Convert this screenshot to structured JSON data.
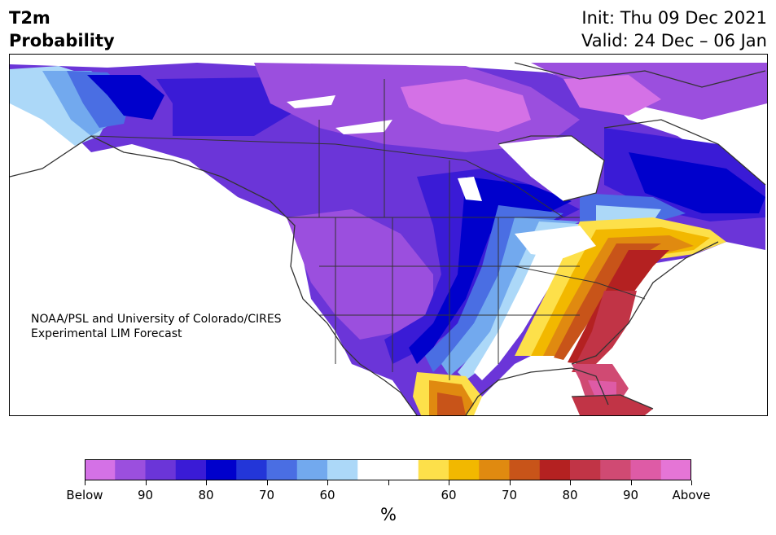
{
  "header": {
    "variable": "T2m",
    "product": "Probability",
    "init": "Init: Thu 09 Dec 2021",
    "valid": "Valid: 24 Dec – 06 Jan"
  },
  "credit": {
    "line1": "NOAA/PSL and University of Colorado/CIRES",
    "line2": "Experimental LIM Forecast"
  },
  "colorbar": {
    "unit": "%",
    "colors": [
      "#d471e6",
      "#9b4fde",
      "#6b35d8",
      "#3a1bd6",
      "#0000cc",
      "#2336d8",
      "#4a6ee3",
      "#72a9ee",
      "#acd8f8",
      "#ffffff",
      "#ffffff",
      "#fde04a",
      "#f2b800",
      "#e08a10",
      "#c85419",
      "#b42121",
      "#c13446",
      "#d04a73",
      "#de5ba6",
      "#e575d6"
    ],
    "tick_labels": [
      "Below",
      "90",
      "80",
      "70",
      "60",
      "",
      "60",
      "70",
      "80",
      "90",
      "Above"
    ]
  },
  "map": {
    "palette": {
      "below_extreme": "#d471e6",
      "below_90": "#9b4fde",
      "below_80": "#6b35d8",
      "below_70": "#3a1bd6",
      "below_60_deep": "#0000cc",
      "below_blue": "#2336d8",
      "below_mid": "#4a6ee3",
      "below_light": "#72a9ee",
      "below_pale": "#acd8f8",
      "neutral": "#ffffff",
      "above_50": "#fde04a",
      "above_60": "#f2b800",
      "above_70": "#e08a10",
      "above_75": "#c85419",
      "above_80": "#b42121",
      "above_85": "#c13446",
      "above_90": "#d04a73",
      "above_95": "#de5ba6",
      "above_extreme": "#e575d6",
      "boundary": "#333333"
    }
  }
}
